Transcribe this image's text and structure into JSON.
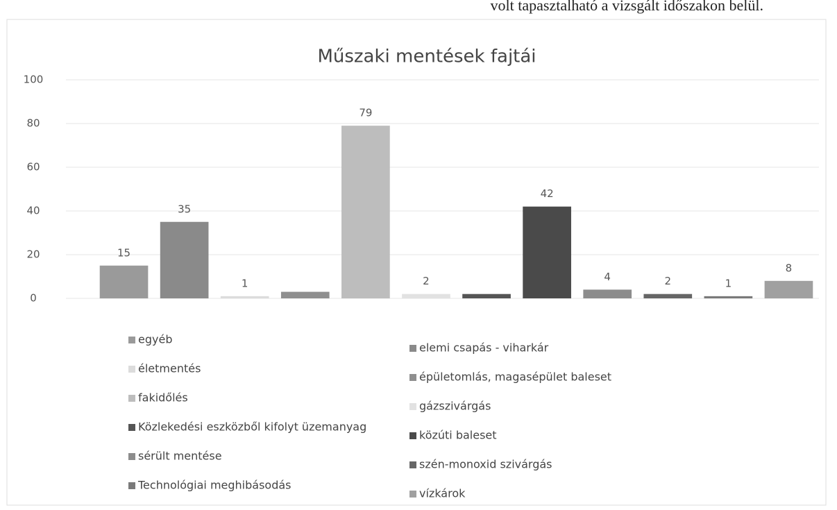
{
  "top_text": "volt tapasztalható a vizsgált időszakon belül.",
  "chart_data": {
    "type": "bar",
    "title": "Műszaki mentések fajtái",
    "categories": [
      "egyéb",
      "elemi csapás - viharkár",
      "életmentés",
      "épületomlás, magasépület baleset",
      "fakidőlés",
      "gázszivárgás",
      "Közlekedési eszközből kifolyt üzemanyag",
      "közúti baleset",
      "sérült mentése",
      "szén-monoxid szivárgás",
      "Technológiai meghibásodás",
      "vízkárok"
    ],
    "values": [
      15,
      35,
      1,
      3,
      79,
      2,
      2,
      42,
      4,
      2,
      1,
      8
    ],
    "value_labels": [
      "15",
      "35",
      "1",
      null,
      "79",
      "2",
      null,
      "42",
      "4",
      "2",
      "1",
      "8"
    ],
    "colors": [
      "#9a9a9a",
      "#8a8a8a",
      "#dcdcdc",
      "#8f8f8f",
      "#bdbdbd",
      "#e2e2e2",
      "#555555",
      "#4a4a4a",
      "#8c8c8c",
      "#666666",
      "#7a7a7a",
      "#a0a0a0"
    ],
    "ylim": [
      0,
      100
    ],
    "yticks": [
      0,
      20,
      40,
      60,
      80,
      100
    ],
    "grid": true
  }
}
